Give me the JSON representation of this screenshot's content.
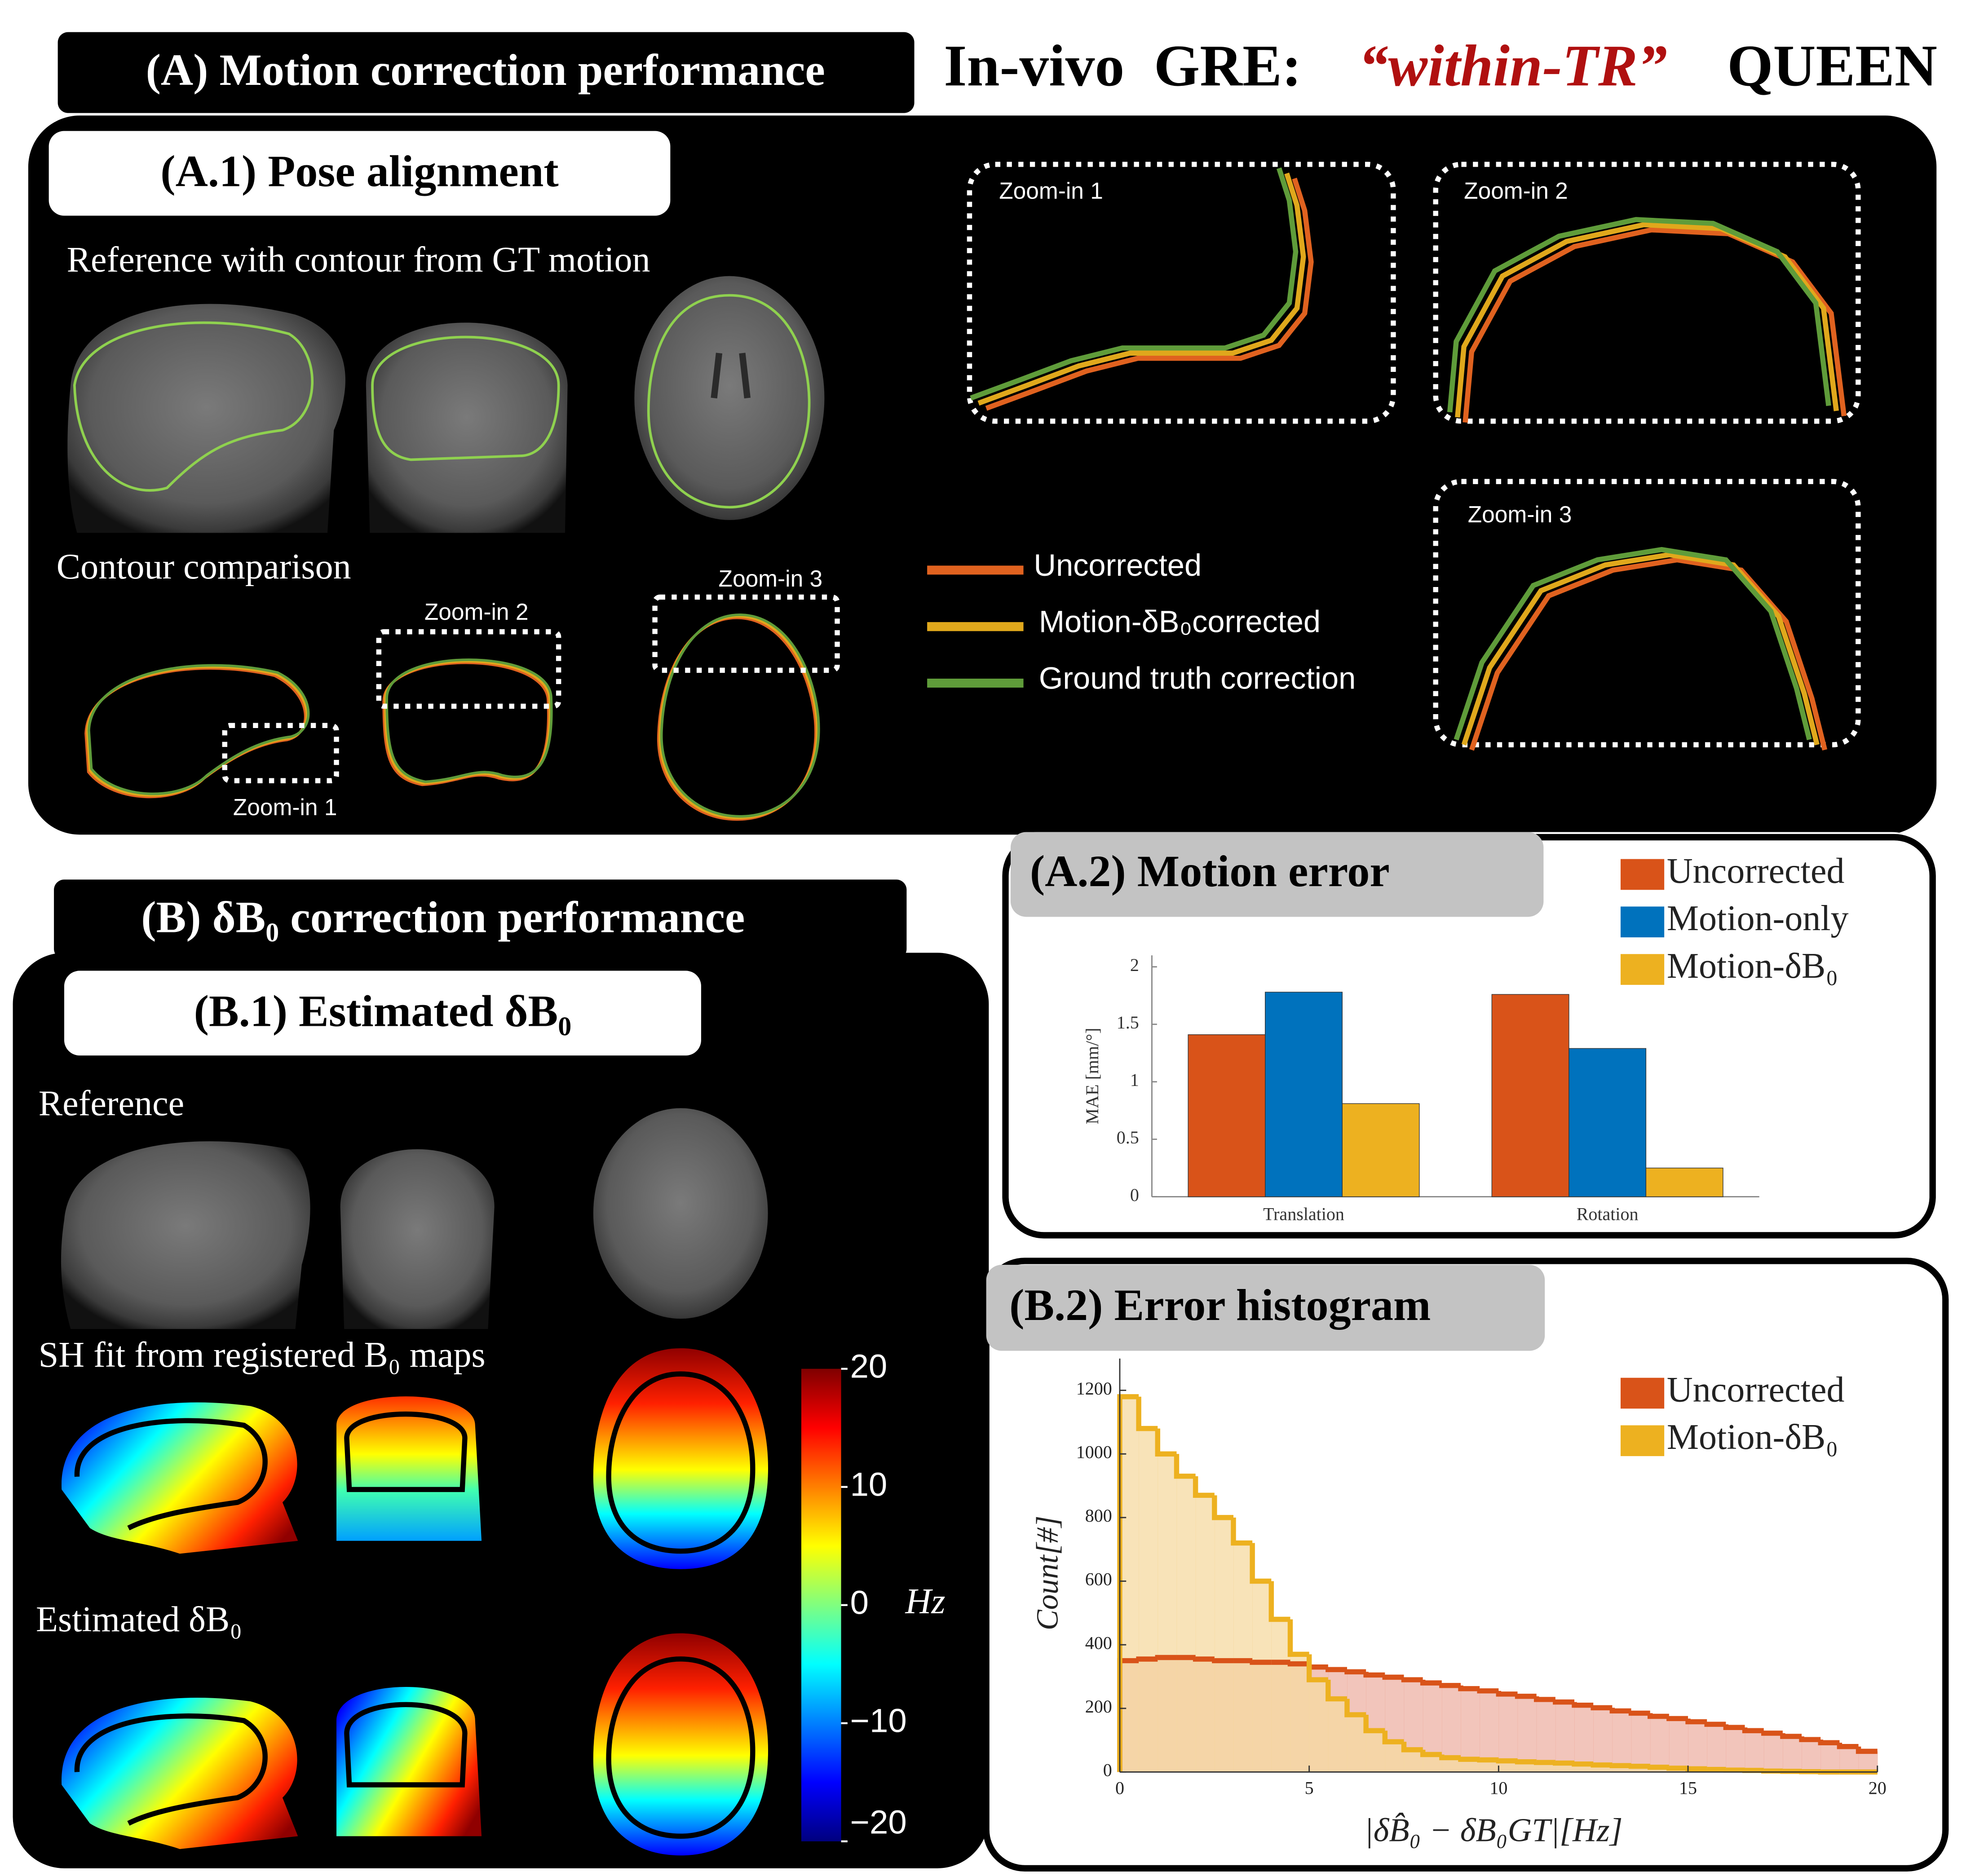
{
  "title": {
    "prefix": "In-vivo  GRE:",
    "highlight": "“within-TR”",
    "suffix": "QUEEN"
  },
  "panels": {
    "A": "(A) Motion correction performance",
    "A1": "(A.1) Pose alignment",
    "B": "(B) δB₀ correction performance",
    "B1": "(B.1) Estimated δB₀"
  },
  "captions": {
    "reference_contour": "Reference with contour from GT motion",
    "contour_comparison": "Contour comparison",
    "reference": "Reference",
    "sh_fit": "SH fit from registered B₀ maps",
    "estimated": "Estimated δB₀"
  },
  "zooms": [
    "Zoom-in 1",
    "Zoom-in 2",
    "Zoom-in 3"
  ],
  "contour_legend": [
    {
      "label": "Uncorrected",
      "color": "#e0621f"
    },
    {
      "label": "Motion-δB₀corrected",
      "color": "#e0a81c"
    },
    {
      "label": "Ground truth correction",
      "color": "#5f9c3a"
    }
  ],
  "colorbar": {
    "label": "Hz",
    "lim": [
      -20,
      20
    ],
    "ticks": [
      20,
      10,
      0,
      {
        "value": -10,
        "label": "−10"
      },
      {
        "value": -20,
        "label": "−20"
      }
    ]
  },
  "chart_data": [
    {
      "type": "bar",
      "title": "(A.2) Motion error",
      "y_label": "MAE [mm/°]",
      "categories": [
        "Translation",
        "Rotation"
      ],
      "series": [
        {
          "name": "Uncorrected",
          "color": "#d95319",
          "values": [
            1.41,
            1.76
          ]
        },
        {
          "name": "Motion-only",
          "color": "#0072bd",
          "values": [
            1.78,
            1.29
          ]
        },
        {
          "name": "Motion-δB₀",
          "color": "#edb120",
          "values": [
            0.81,
            0.25
          ]
        }
      ],
      "ylim": [
        0,
        2.1
      ],
      "yticks": [
        0,
        0.5,
        1,
        1.5,
        2
      ],
      "legend": "upper-right"
    },
    {
      "type": "histogram",
      "title": "(B.2) Error histogram",
      "x_label": "|δB̂₀ − δB₀GT|[Hz]",
      "y_label": "Count[#]",
      "bins": [
        0,
        0.5,
        1,
        1.5,
        2,
        2.5,
        3,
        3.5,
        4,
        4.5,
        5,
        5.5,
        6,
        6.5,
        7,
        7.5,
        8,
        8.5,
        9,
        9.5,
        10,
        10.5,
        11,
        11.5,
        12,
        12.5,
        13,
        13.5,
        14,
        14.5,
        15,
        15.5,
        16,
        16.5,
        17,
        17.5,
        18,
        18.5,
        19,
        19.5,
        20
      ],
      "series": [
        {
          "name": "Uncorrected",
          "color": "#d95319",
          "fill": "#eeb2a4",
          "values": [
            350,
            355,
            360,
            360,
            355,
            350,
            350,
            345,
            345,
            340,
            330,
            322,
            315,
            305,
            298,
            290,
            280,
            272,
            262,
            255,
            245,
            238,
            228,
            220,
            210,
            202,
            192,
            185,
            175,
            168,
            158,
            150,
            140,
            130,
            122,
            112,
            102,
            92,
            80,
            65
          ]
        },
        {
          "name": "Motion-δB₀",
          "color": "#edb120",
          "fill": "#f6d9a0",
          "values": [
            1180,
            1080,
            1000,
            930,
            870,
            800,
            720,
            600,
            480,
            370,
            290,
            230,
            180,
            130,
            95,
            70,
            55,
            45,
            40,
            38,
            35,
            32,
            30,
            28,
            25,
            22,
            20,
            18,
            15,
            12,
            10,
            8,
            6,
            5,
            3,
            2,
            1,
            0,
            0,
            0
          ]
        }
      ],
      "xlim": [
        0,
        20
      ],
      "ylim": [
        0,
        1300
      ],
      "xticks": [
        0,
        5,
        10,
        15,
        20
      ],
      "yticks": [
        0,
        200,
        400,
        600,
        800,
        1000,
        1200
      ],
      "legend": "upper-right"
    }
  ]
}
